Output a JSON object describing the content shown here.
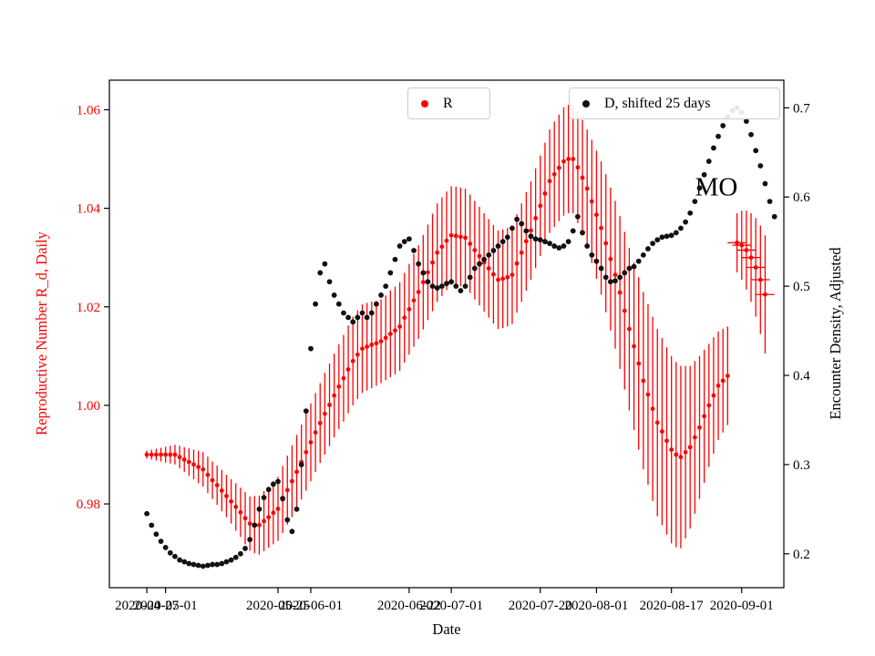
{
  "figure": {
    "xlabel": "Date",
    "ylabel_left": "Reproductive Number R_d, Daily",
    "ylabel_right": "Encounter Density, Adjusted",
    "annotation": "MO",
    "background": "#ffffff",
    "axis_color": "#000000"
  },
  "chart_data": {
    "type": "scatter",
    "title": "",
    "xlabel": "Date",
    "ylabel_left": "Reproductive Number R_d, Daily",
    "ylabel_right": "Encounter Density, Adjusted",
    "legend_position": "upper center, two boxes",
    "grid": false,
    "xlim": [
      "2020-04-19",
      "2020-09-10"
    ],
    "ylim_left": [
      0.963,
      1.066
    ],
    "ylim_right": [
      0.162,
      0.731
    ],
    "yticks_left": {
      "values": [
        0.98,
        1.0,
        1.02,
        1.04,
        1.06
      ],
      "labels": [
        "0.98",
        "1.00",
        "1.02",
        "1.04",
        "1.06"
      ]
    },
    "yticks_right": {
      "values": [
        0.2,
        0.3,
        0.4,
        0.5,
        0.6,
        0.7
      ],
      "labels": [
        "0.2",
        "0.3",
        "0.4",
        "0.5",
        "0.6",
        "0.7"
      ]
    },
    "xticks": {
      "dates": [
        "2020-04-27",
        "2020-05-01",
        "2020-05-25",
        "2020-06-01",
        "2020-06-22",
        "2020-07-01",
        "2020-07-20",
        "2020-08-01",
        "2020-08-17",
        "2020-09-01"
      ],
      "labels": [
        "2020-04-27",
        "2020-05-01",
        "2020-05-25",
        "2020-06-01",
        "2020-06-22",
        "2020-07-01",
        "2020-07-20",
        "2020-08-01",
        "2020-08-17",
        "2020-09-01"
      ],
      "note": "two overlapping tick label sets (monthly and 4-weekly) as rendered"
    },
    "series": [
      {
        "name": "R",
        "axis": "left",
        "color": "#ff0000",
        "marker": "dot",
        "has_error_bars": true,
        "segments": [
          {
            "start": "2020-04-27",
            "cadence_days": 1,
            "values": [
              0.99,
              0.99,
              0.99,
              0.99,
              0.99,
              0.99,
              0.99,
              0.9895,
              0.989,
              0.9885,
              0.988,
              0.9875,
              0.987,
              0.9859,
              0.9848,
              0.9838,
              0.9827,
              0.9816,
              0.9805,
              0.9794,
              0.9783,
              0.9771,
              0.976,
              0.9758,
              0.9757,
              0.9765,
              0.9773,
              0.9782,
              0.979,
              0.9809,
              0.9828,
              0.9846,
              0.9865,
              0.9885,
              0.9905,
              0.9925,
              0.9945,
              0.9964,
              0.9983,
              1.0001,
              1.002,
              1.0038,
              1.0055,
              1.0073,
              1.009,
              1.0103,
              1.0115,
              1.0119,
              1.0123,
              1.0126,
              1.013,
              1.0137,
              1.0145,
              1.0152,
              1.016,
              1.0178,
              1.0195,
              1.0213,
              1.023,
              1.025,
              1.027,
              1.029,
              1.031,
              1.0322,
              1.0334,
              1.0345,
              1.0344,
              1.0342,
              1.034,
              1.0328,
              1.0315,
              1.0303,
              1.029,
              1.0278,
              1.0266,
              1.0255,
              1.0257,
              1.026,
              1.0265,
              1.0288,
              1.031,
              1.0333,
              1.0355,
              1.038,
              1.0405,
              1.043,
              1.0455,
              1.0469,
              1.0482,
              1.0495,
              1.05,
              1.05,
              1.0483,
              1.0462,
              1.044,
              1.0414,
              1.0387,
              1.036,
              1.0329,
              1.0297,
              1.0265,
              1.0229,
              1.0192,
              1.0155,
              1.012,
              1.0085,
              1.005,
              1.0022,
              0.9993,
              0.9965,
              0.9947,
              0.9928,
              0.991,
              0.99,
              0.9895,
              0.9905,
              0.9915,
              0.9935,
              0.9955,
              0.9978,
              1.0,
              1.002,
              1.004,
              1.005,
              1.006
            ],
            "errors": [
              0.0008,
              0.001,
              0.0012,
              0.0014,
              0.0016,
              0.0018,
              0.002,
              0.0023,
              0.0025,
              0.0028,
              0.003,
              0.0033,
              0.0035,
              0.0037,
              0.0038,
              0.004,
              0.0042,
              0.0043,
              0.0045,
              0.0048,
              0.005,
              0.0053,
              0.0055,
              0.0058,
              0.006,
              0.0061,
              0.0062,
              0.0064,
              0.0065,
              0.0068,
              0.007,
              0.0073,
              0.0075,
              0.0076,
              0.0078,
              0.0079,
              0.008,
              0.0081,
              0.0083,
              0.0084,
              0.0085,
              0.0086,
              0.0088,
              0.0089,
              0.009,
              0.009,
              0.009,
              0.0089,
              0.0088,
              0.0086,
              0.0085,
              0.0086,
              0.0088,
              0.0089,
              0.009,
              0.0091,
              0.0092,
              0.0094,
              0.0095,
              0.0096,
              0.0097,
              0.0099,
              0.01,
              0.01,
              0.01,
              0.01,
              0.01,
              0.01,
              0.01,
              0.01,
              0.01,
              0.01,
              0.01,
              0.01,
              0.01,
              0.01,
              0.01,
              0.01,
              0.01,
              0.01,
              0.01,
              0.01,
              0.01,
              0.0101,
              0.0102,
              0.0103,
              0.0105,
              0.0107,
              0.0108,
              0.011,
              0.011,
              0.011,
              0.0113,
              0.0117,
              0.012,
              0.0125,
              0.013,
              0.0135,
              0.014,
              0.0145,
              0.015,
              0.0155,
              0.016,
              0.0165,
              0.017,
              0.0175,
              0.018,
              0.0183,
              0.0187,
              0.019,
              0.019,
              0.019,
              0.019,
              0.0188,
              0.0185,
              0.0175,
              0.0165,
              0.0155,
              0.0145,
              0.0135,
              0.0125,
              0.0118,
              0.011,
              0.0105,
              0.01
            ]
          },
          {
            "start": "2020-08-31",
            "cadence_days": 1,
            "xerr_days": 2,
            "values": [
              1.033,
              1.0325,
              1.0315,
              1.03,
              1.028,
              1.0255,
              1.0225
            ],
            "errors": [
              0.006,
              0.007,
              0.008,
              0.009,
              0.01,
              0.011,
              0.012
            ]
          }
        ]
      },
      {
        "name": "D, shifted 25 days",
        "axis": "right",
        "color": "#111111",
        "marker": "dot",
        "has_error_bars": false,
        "segments": [
          {
            "start": "2020-04-27",
            "cadence_days": 1,
            "values": [
              0.245,
              0.232,
              0.222,
              0.214,
              0.207,
              0.201,
              0.197,
              0.193,
              0.191,
              0.189,
              0.188,
              0.187,
              0.186,
              0.187,
              0.188,
              0.188,
              0.189,
              0.191,
              0.193,
              0.196,
              0.2,
              0.206,
              0.216,
              0.232,
              0.25,
              0.263,
              0.272,
              0.278,
              0.281,
              0.262,
              0.238,
              0.225,
              0.25,
              0.3,
              0.36,
              0.43,
              0.48,
              0.515,
              0.525,
              0.505,
              0.49,
              0.48,
              0.47,
              0.465,
              0.46,
              0.465,
              0.47,
              0.465,
              0.47,
              0.48,
              0.49,
              0.5,
              0.515,
              0.53,
              0.545,
              0.55,
              0.553,
              0.54,
              0.525,
              0.515,
              0.505,
              0.5,
              0.498,
              0.5,
              0.503,
              0.505,
              0.5,
              0.495,
              0.5,
              0.51,
              0.52,
              0.525,
              0.53,
              0.535,
              0.54,
              0.545,
              0.55,
              0.555,
              0.565,
              0.575,
              0.57,
              0.562,
              0.556,
              0.553,
              0.552,
              0.55,
              0.548,
              0.545,
              0.543,
              0.545,
              0.55,
              0.562,
              0.578,
              0.56,
              0.545,
              0.535,
              0.528,
              0.52,
              0.51,
              0.505,
              0.506,
              0.51,
              0.515,
              0.52,
              0.522,
              0.528,
              0.535,
              0.542,
              0.548,
              0.552,
              0.555,
              0.556,
              0.557,
              0.56,
              0.565,
              0.572,
              0.582,
              0.595,
              0.61,
              0.625,
              0.64,
              0.655,
              0.668,
              0.68,
              0.69,
              0.697,
              0.7,
              0.695,
              0.685,
              0.67,
              0.652,
              0.635,
              0.615,
              0.595,
              0.578
            ]
          }
        ]
      }
    ],
    "annotations": [
      {
        "text": "MO"
      }
    ]
  }
}
